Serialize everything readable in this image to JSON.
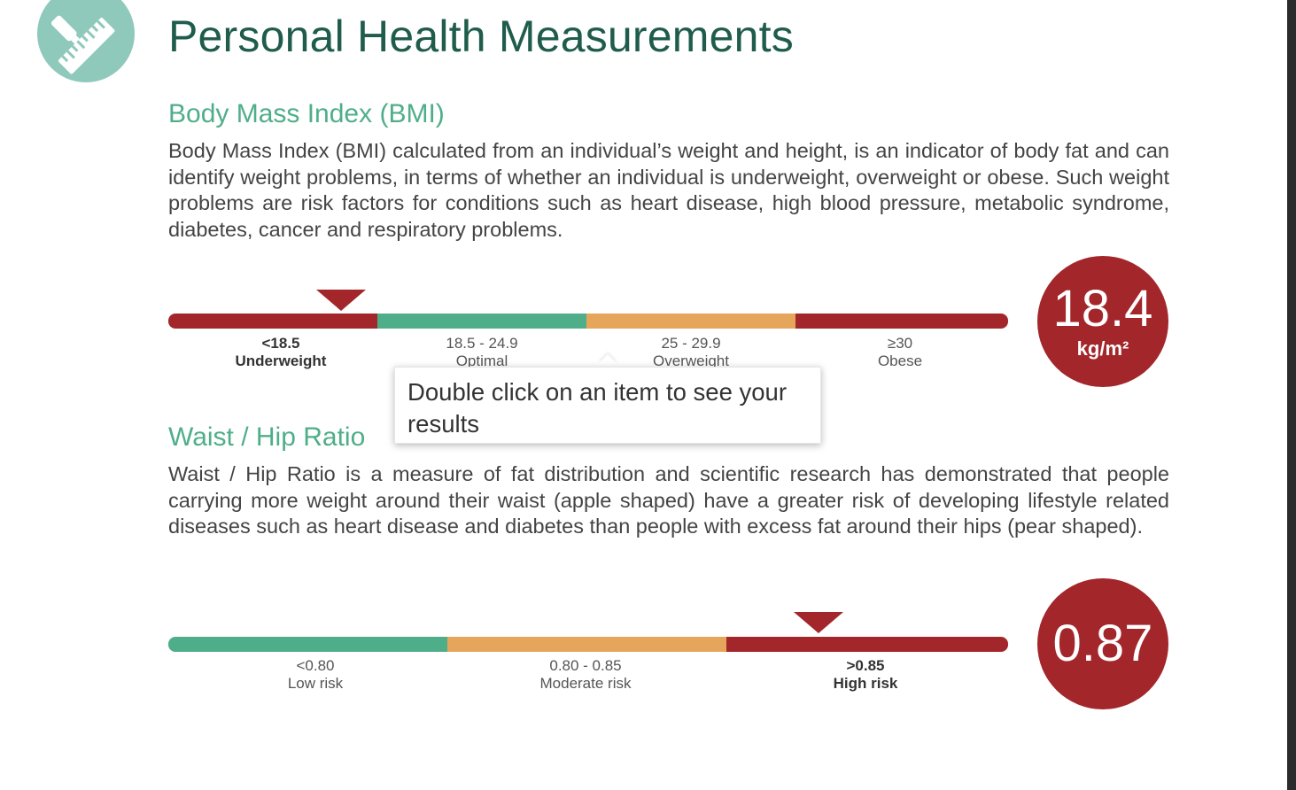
{
  "page": {
    "title": "Personal Health Measurements",
    "logo_icon": "pen-ruler-icon"
  },
  "bmi": {
    "heading": "Body Mass Index (BMI)",
    "description": "Body Mass Index (BMI) calculated from an individual’s weight and height, is an indicator of body fat and can identify weight problems, in terms of whether an individual is underweight, overweight or obese. Such weight problems are risk factors for conditions such as heart disease, high blood pressure, metabolic syndrome, diabetes, cancer and respiratory problems.",
    "categories": [
      {
        "range": "<18.5",
        "label": "Underweight",
        "color": "#a3262a",
        "active": true
      },
      {
        "range": "18.5  -  24.9",
        "label": "Optimal",
        "color": "#4fae8a",
        "active": false
      },
      {
        "range": "25  -  29.9",
        "label": "Overweight",
        "color": "#e5a55a",
        "active": false
      },
      {
        "range": "≥30",
        "label": "Obese",
        "color": "#a3262a",
        "active": false
      }
    ],
    "result": {
      "value": "18.4",
      "unit": "kg/m²"
    }
  },
  "whr": {
    "heading": "Waist / Hip Ratio",
    "description": "Waist / Hip Ratio is a measure of fat distribution and scientific research has demonstrated that people carrying more weight around their waist (apple shaped) have a greater risk of developing lifestyle related diseases such as heart disease and diabetes than people with excess fat around their hips (pear shaped).",
    "categories": [
      {
        "range": "<0.80",
        "label": "Low risk",
        "color": "#4fae8a",
        "active": false
      },
      {
        "range": "0.80  -  0.85",
        "label": "Moderate risk",
        "color": "#e5a55a",
        "active": false
      },
      {
        "range": ">0.85",
        "label": "High risk",
        "color": "#a3262a",
        "active": true
      }
    ],
    "result": {
      "value": "0.87"
    }
  },
  "tooltip": {
    "text": "Double click on an item to see your results"
  },
  "colors": {
    "title": "#1f5c4c",
    "heading": "#4fae8a",
    "badge": "#a3262a"
  }
}
